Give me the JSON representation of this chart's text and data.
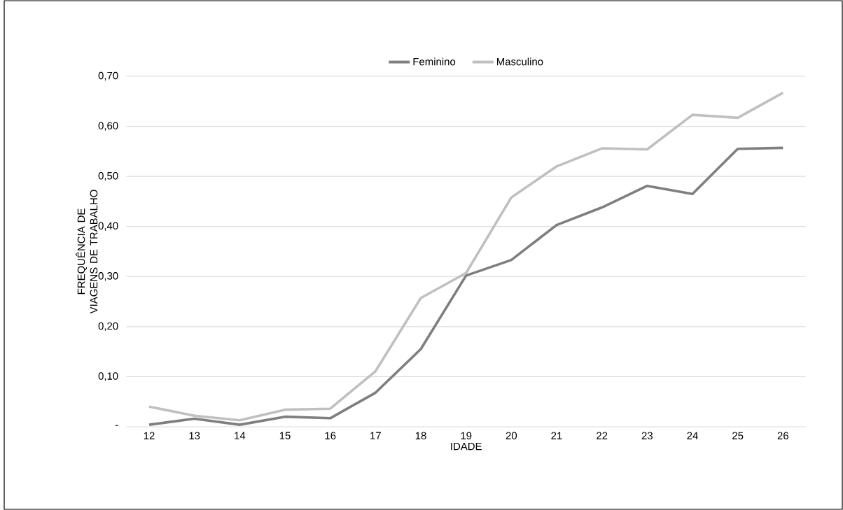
{
  "chart_data": {
    "type": "line",
    "xlabel": "IDADE",
    "ylabel": "FREQUÊNCIA DE VIAGENS DE TRABALHO",
    "categories": [
      "12",
      "13",
      "14",
      "15",
      "16",
      "17",
      "18",
      "19",
      "20",
      "21",
      "22",
      "23",
      "24",
      "25",
      "26"
    ],
    "series": [
      {
        "name": "Feminino",
        "color": "#7f7f7f",
        "values": [
          0.004,
          0.016,
          0.004,
          0.02,
          0.017,
          0.068,
          0.155,
          0.302,
          0.333,
          0.403,
          0.438,
          0.481,
          0.465,
          0.555,
          0.557
        ]
      },
      {
        "name": "Masculino",
        "color": "#c0c0c0",
        "values": [
          0.04,
          0.022,
          0.013,
          0.034,
          0.036,
          0.111,
          0.257,
          0.307,
          0.458,
          0.52,
          0.556,
          0.554,
          0.623,
          0.617,
          0.667
        ]
      }
    ],
    "ylim": [
      0,
      0.7
    ],
    "yticks": [
      {
        "value": 0,
        "label": "-"
      },
      {
        "value": 0.1,
        "label": "0,10"
      },
      {
        "value": 0.2,
        "label": "0,20"
      },
      {
        "value": 0.3,
        "label": "0,30"
      },
      {
        "value": 0.4,
        "label": "0,40"
      },
      {
        "value": 0.5,
        "label": "0,50"
      },
      {
        "value": 0.6,
        "label": "0,60"
      },
      {
        "value": 0.7,
        "label": "0,70"
      }
    ],
    "grid": "y",
    "legend": "top",
    "marker": "none",
    "line_style": "solid"
  }
}
